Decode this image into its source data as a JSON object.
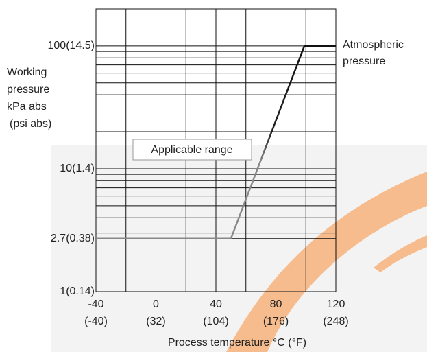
{
  "chart_data": {
    "type": "line",
    "y_label_lines": [
      "Working",
      "pressure",
      "kPa abs",
      "(psi abs)"
    ],
    "x_label": "Process temperature °C (°F)",
    "annotation_lines": [
      "Atmospheric",
      "pressure"
    ],
    "range_label": "Applicable range",
    "x": [
      -40,
      50,
      99,
      120
    ],
    "series": [
      {
        "color": "#222222",
        "values": [
          2.7,
          2.7,
          100,
          100
        ]
      }
    ],
    "xlim": [
      -40,
      120
    ],
    "xticks": [
      -40,
      0,
      40,
      80,
      120
    ],
    "xticks_secondary": [
      "(-40)",
      "(32)",
      "(104)",
      "(176)",
      "(248)"
    ],
    "minor_xticks": [
      -20,
      20,
      60,
      100
    ],
    "ylim": [
      1,
      200
    ],
    "yscale": "log",
    "yticks": [
      {
        "value": 1,
        "label": "1(0.14)"
      },
      {
        "value": 2.7,
        "label": "2.7(0.38)"
      },
      {
        "value": 10,
        "label": "10(1.4)"
      },
      {
        "value": 100,
        "label": "100(14.5)"
      }
    ],
    "minor_yticks": [
      3,
      4,
      5,
      6,
      7,
      8,
      9,
      20,
      30,
      40,
      50,
      60,
      70,
      80,
      90
    ],
    "grid": true
  }
}
